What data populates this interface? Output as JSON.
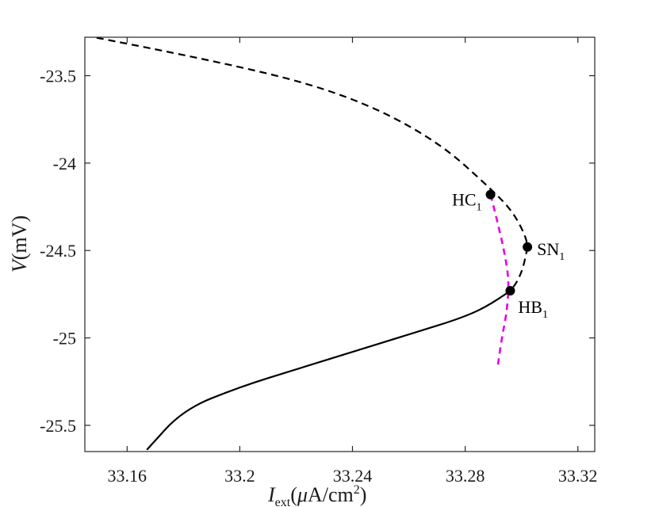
{
  "chart_data": {
    "type": "line",
    "xlabel": {
      "main": "I",
      "sub": "ext",
      "unit_open": "(",
      "unit_mu": "μ",
      "unit_rest": "A/cm",
      "unit_sup": "2",
      "unit_close": ")"
    },
    "ylabel": {
      "main": "V",
      "unit": "(mV)"
    },
    "xlim": [
      33.145,
      33.326
    ],
    "ylim": [
      -25.65,
      -23.28
    ],
    "xticks": [
      33.16,
      33.2,
      33.24,
      33.28,
      33.32
    ],
    "xtick_labels": [
      "33.16",
      "33.2",
      "33.24",
      "33.28",
      "33.32"
    ],
    "yticks": [
      -23.5,
      -24,
      -24.5,
      -25,
      -25.5
    ],
    "ytick_labels": [
      "-23.5",
      "-24",
      "-24.5",
      "-25",
      "-25.5"
    ],
    "series": [
      {
        "style": "dashed",
        "color": "#000000",
        "points": [
          [
            33.145,
            -23.27
          ],
          [
            33.2,
            -23.44
          ],
          [
            33.24,
            -23.62
          ],
          [
            33.27,
            -23.87
          ],
          [
            33.29,
            -24.16
          ],
          [
            33.297,
            -24.28
          ],
          [
            33.3015,
            -24.42
          ],
          [
            33.3021,
            -24.48
          ]
        ]
      },
      {
        "style": "dashed",
        "color": "#000000",
        "points": [
          [
            33.3021,
            -24.48
          ],
          [
            33.301,
            -24.58
          ],
          [
            33.2985,
            -24.68
          ],
          [
            33.296,
            -24.73
          ]
        ]
      },
      {
        "style": "solid",
        "color": "#000000",
        "points": [
          [
            33.296,
            -24.73
          ],
          [
            33.29,
            -24.8
          ],
          [
            33.28,
            -24.88
          ],
          [
            33.26,
            -24.98
          ],
          [
            33.24,
            -25.08
          ],
          [
            33.22,
            -25.18
          ],
          [
            33.2,
            -25.28
          ],
          [
            33.18,
            -25.41
          ],
          [
            33.167,
            -25.64
          ]
        ]
      },
      {
        "style": "dashed",
        "color": "#e600e6",
        "points": [
          [
            33.289,
            -24.18
          ],
          [
            33.2925,
            -24.4
          ],
          [
            33.295,
            -24.6
          ],
          [
            33.2955,
            -24.73
          ],
          [
            33.2945,
            -24.88
          ],
          [
            33.293,
            -25.0
          ],
          [
            33.2915,
            -25.17
          ]
        ]
      }
    ],
    "points": [
      {
        "label": "HC",
        "sub": "1",
        "x": 33.289,
        "y": -24.18,
        "anchor": "left"
      },
      {
        "label": "SN",
        "sub": "1",
        "x": 33.3021,
        "y": -24.48,
        "anchor": "right"
      },
      {
        "label": "HB",
        "sub": "1",
        "x": 33.296,
        "y": -24.73,
        "anchor": "right-below"
      }
    ]
  }
}
